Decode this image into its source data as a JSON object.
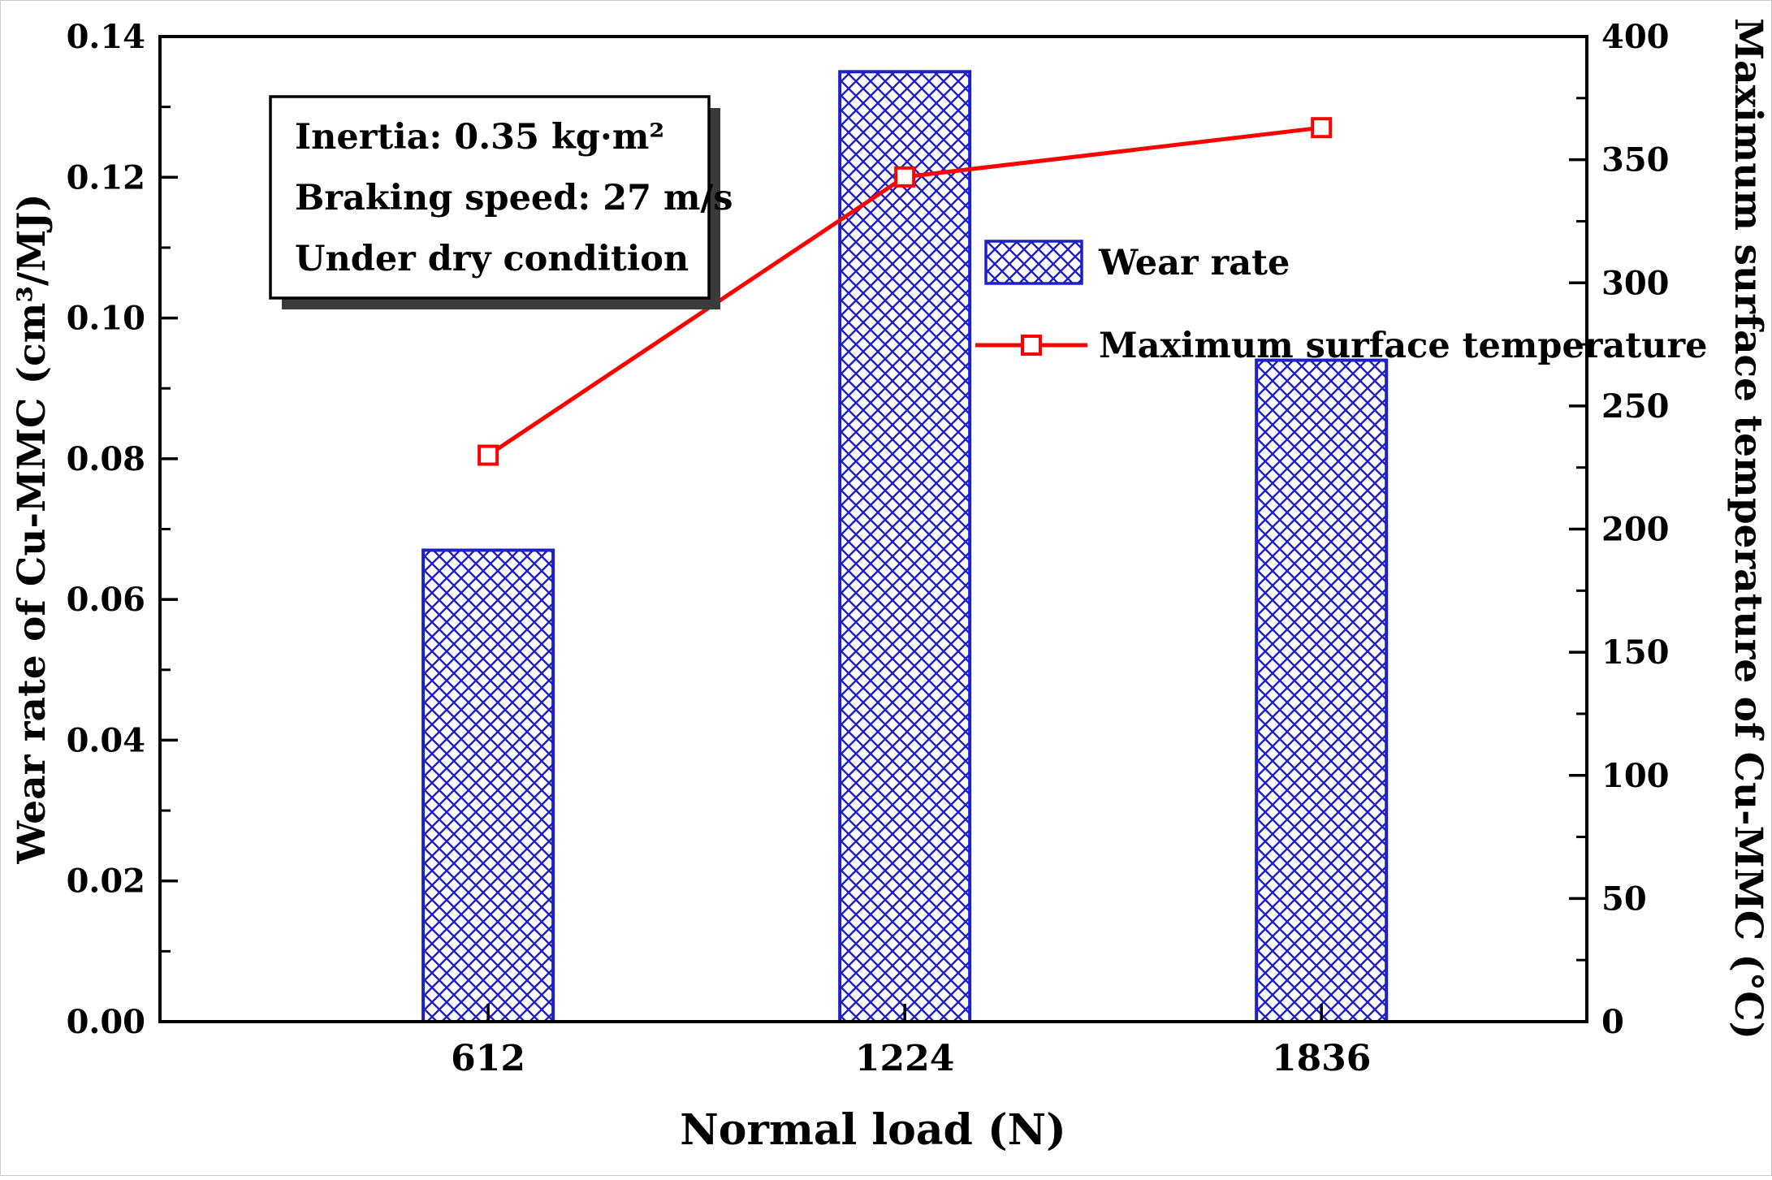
{
  "chart_data": {
    "type": "bar+line",
    "title": "",
    "xlabel": "Normal load (N)",
    "ylabel_left": "Wear rate of Cu-MMC (cm³/MJ)",
    "ylabel_right": "Maximum surface temperature of Cu-MMC (°C)",
    "categories": [
      "612",
      "1224",
      "1836"
    ],
    "series": [
      {
        "name": "Wear rate",
        "type": "bar",
        "axis": "left",
        "values": [
          0.067,
          0.135,
          0.094
        ],
        "color": "#1f1fc8",
        "pattern": "crosshatch",
        "fill_background": "#ffffff"
      },
      {
        "name": "Maximum surface temperature",
        "type": "line",
        "axis": "right",
        "values": [
          230,
          343,
          363
        ],
        "color": "#ff0000",
        "marker": "open-square"
      }
    ],
    "left_axis": {
      "min": 0,
      "max": 0.14,
      "major_tick": 0.02,
      "tick_labels": [
        "0.00",
        "0.02",
        "0.04",
        "0.06",
        "0.08",
        "0.10",
        "0.12",
        "0.14"
      ]
    },
    "right_axis": {
      "min": 0,
      "max": 400,
      "major_tick": 50,
      "tick_labels": [
        "0",
        "50",
        "100",
        "150",
        "200",
        "250",
        "300",
        "350",
        "400"
      ]
    },
    "annotation": {
      "lines": [
        "Inertia: 0.35 kg·m²",
        "Braking speed: 27 m/s",
        "Under dry condition"
      ]
    },
    "legend": [
      {
        "label": "Wear rate",
        "swatch": "crosshatch"
      },
      {
        "label": "Maximum surface temperature",
        "swatch": "line-marker"
      }
    ],
    "grid": false,
    "legend_position": "inside-upper-middle",
    "frame": true
  }
}
